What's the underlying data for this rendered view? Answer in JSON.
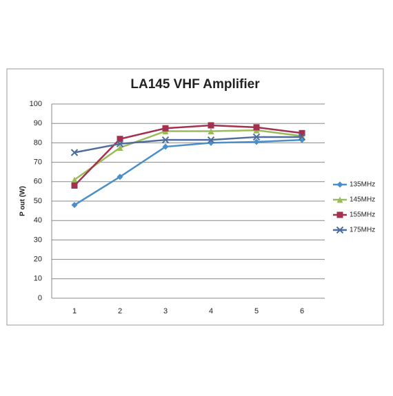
{
  "chart_data": {
    "type": "line",
    "title": "LA145 VHF Amplifier",
    "y_label": "P out (W)",
    "categories": [
      "1",
      "2",
      "3",
      "4",
      "5",
      "6"
    ],
    "series": [
      {
        "name": "135MHz",
        "color": "#4a8fc9",
        "marker": "diamond",
        "values": [
          48,
          62.5,
          78,
          80,
          80.5,
          81.5
        ]
      },
      {
        "name": "145MHz",
        "color": "#9bbb59",
        "marker": "triangle",
        "values": [
          61,
          77.5,
          86,
          86,
          86.5,
          83.5
        ]
      },
      {
        "name": "155MHz",
        "color": "#a3304f",
        "marker": "square",
        "values": [
          58,
          82,
          87.5,
          89,
          88,
          85
        ]
      },
      {
        "name": "175MHz",
        "color": "#4f6d9c",
        "marker": "x",
        "values": [
          75,
          79.5,
          81.5,
          81.5,
          83,
          83
        ]
      }
    ],
    "ylim": [
      0,
      100
    ],
    "yticks": [
      0,
      10,
      20,
      30,
      40,
      50,
      60,
      70,
      80,
      90,
      100
    ],
    "grid": true,
    "legend": "right"
  }
}
